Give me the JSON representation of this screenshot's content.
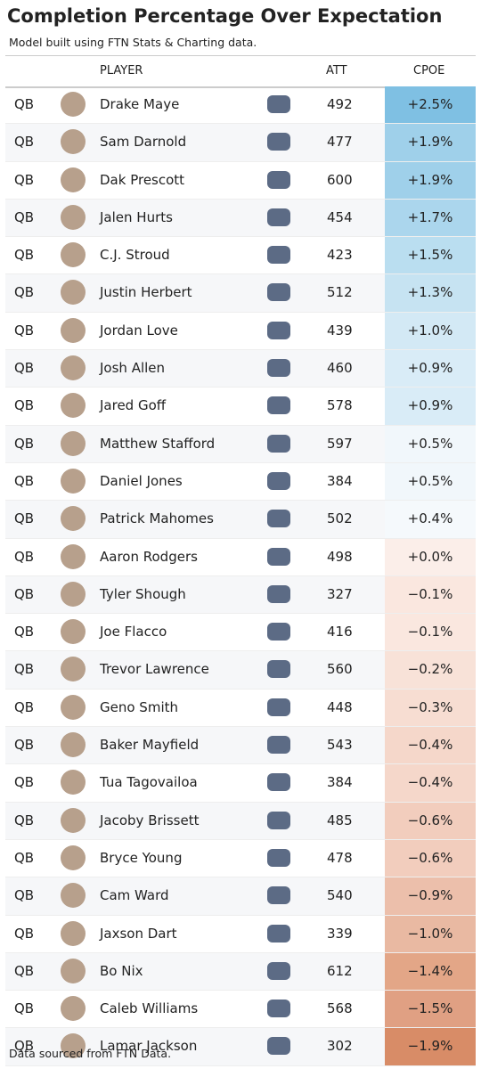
{
  "header": {
    "title": "Completion Percentage Over Expectation",
    "subtitle": "Model built using FTN Stats & Charting data."
  },
  "table": {
    "columns": [
      "PLAYER",
      "ATT",
      "CPOE"
    ],
    "rows": [
      {
        "position": "QB",
        "player": "Drake Maye",
        "att": "492",
        "cpoe": "+2.5%",
        "color": "#7fc0e3"
      },
      {
        "position": "QB",
        "player": "Sam Darnold",
        "att": "477",
        "cpoe": "+1.9%",
        "color": "#9fd0ea"
      },
      {
        "position": "QB",
        "player": "Dak Prescott",
        "att": "600",
        "cpoe": "+1.9%",
        "color": "#9fd0ea"
      },
      {
        "position": "QB",
        "player": "Jalen Hurts",
        "att": "454",
        "cpoe": "+1.7%",
        "color": "#abd6ed"
      },
      {
        "position": "QB",
        "player": "C.J. Stroud",
        "att": "423",
        "cpoe": "+1.5%",
        "color": "#badef0"
      },
      {
        "position": "QB",
        "player": "Justin Herbert",
        "att": "512",
        "cpoe": "+1.3%",
        "color": "#c6e3f2"
      },
      {
        "position": "QB",
        "player": "Jordan Love",
        "att": "439",
        "cpoe": "+1.0%",
        "color": "#d3e9f5"
      },
      {
        "position": "QB",
        "player": "Josh Allen",
        "att": "460",
        "cpoe": "+0.9%",
        "color": "#d9ecf7"
      },
      {
        "position": "QB",
        "player": "Jared Goff",
        "att": "578",
        "cpoe": "+0.9%",
        "color": "#d9ecf7"
      },
      {
        "position": "QB",
        "player": "Matthew Stafford",
        "att": "597",
        "cpoe": "+0.5%",
        "color": "#f1f7fb"
      },
      {
        "position": "QB",
        "player": "Daniel Jones",
        "att": "384",
        "cpoe": "+0.5%",
        "color": "#f1f7fb"
      },
      {
        "position": "QB",
        "player": "Patrick Mahomes",
        "att": "502",
        "cpoe": "+0.4%",
        "color": "#f5f9fc"
      },
      {
        "position": "QB",
        "player": "Aaron Rodgers",
        "att": "498",
        "cpoe": "+0.0%",
        "color": "#fbeee9"
      },
      {
        "position": "QB",
        "player": "Tyler Shough",
        "att": "327",
        "cpoe": "−0.1%",
        "color": "#fae7df"
      },
      {
        "position": "QB",
        "player": "Joe Flacco",
        "att": "416",
        "cpoe": "−0.1%",
        "color": "#fae7df"
      },
      {
        "position": "QB",
        "player": "Trevor Lawrence",
        "att": "560",
        "cpoe": "−0.2%",
        "color": "#f8e2d8"
      },
      {
        "position": "QB",
        "player": "Geno Smith",
        "att": "448",
        "cpoe": "−0.3%",
        "color": "#f7ddd2"
      },
      {
        "position": "QB",
        "player": "Baker Mayfield",
        "att": "543",
        "cpoe": "−0.4%",
        "color": "#f5d7ca"
      },
      {
        "position": "QB",
        "player": "Tua Tagovailoa",
        "att": "384",
        "cpoe": "−0.4%",
        "color": "#f5d7ca"
      },
      {
        "position": "QB",
        "player": "Jacoby Brissett",
        "att": "485",
        "cpoe": "−0.6%",
        "color": "#f2cdbd"
      },
      {
        "position": "QB",
        "player": "Bryce Young",
        "att": "478",
        "cpoe": "−0.6%",
        "color": "#f2cdbd"
      },
      {
        "position": "QB",
        "player": "Cam Ward",
        "att": "540",
        "cpoe": "−0.9%",
        "color": "#ecbfab"
      },
      {
        "position": "QB",
        "player": "Jaxson Dart",
        "att": "339",
        "cpoe": "−1.0%",
        "color": "#e9b9a2"
      },
      {
        "position": "QB",
        "player": "Bo Nix",
        "att": "612",
        "cpoe": "−1.4%",
        "color": "#e3a687"
      },
      {
        "position": "QB",
        "player": "Caleb Williams",
        "att": "568",
        "cpoe": "−1.5%",
        "color": "#e0a083"
      },
      {
        "position": "QB",
        "player": "Lamar Jackson",
        "att": "302",
        "cpoe": "−1.9%",
        "color": "#d88c67"
      }
    ]
  },
  "footer": {
    "source": "Data sourced from FTN Data."
  }
}
